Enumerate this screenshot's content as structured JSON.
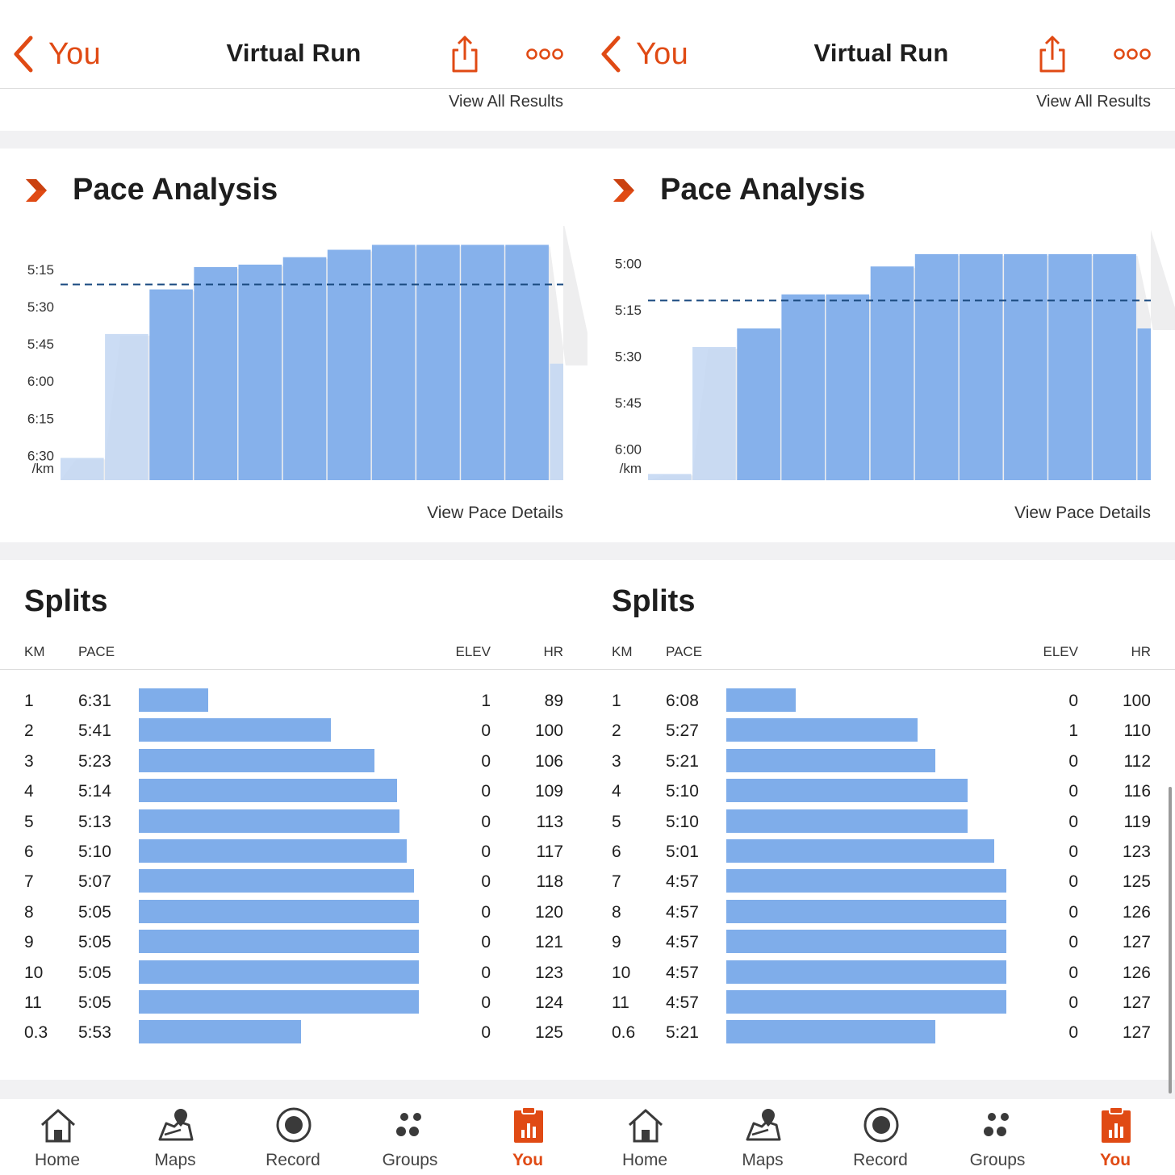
{
  "colors": {
    "accent": "#e04a14",
    "bar": "#7fadea",
    "bar_light": "#c2d6f2",
    "elevation_fill": "#eeeeef",
    "avg_line": "#1a4a80"
  },
  "panels": [
    {
      "header": {
        "back_label": "You",
        "title": "Virtual Run",
        "back_icon": "chevron-left-icon",
        "share_icon": "share-icon",
        "more_icon": "more-dots-icon"
      },
      "view_all_results": "View All Results",
      "pace_analysis": {
        "title": "Pace Analysis",
        "icon": "strava-chevron-icon",
        "view_details": "View Pace Details"
      },
      "splits": {
        "title": "Splits",
        "headers": {
          "km": "KM",
          "pace": "PACE",
          "elev": "ELEV",
          "hr": "HR"
        },
        "rows": [
          {
            "km": "1",
            "pace": "6:31",
            "elev": "1",
            "hr": "89"
          },
          {
            "km": "2",
            "pace": "5:41",
            "elev": "0",
            "hr": "100"
          },
          {
            "km": "3",
            "pace": "5:23",
            "elev": "0",
            "hr": "106"
          },
          {
            "km": "4",
            "pace": "5:14",
            "elev": "0",
            "hr": "109"
          },
          {
            "km": "5",
            "pace": "5:13",
            "elev": "0",
            "hr": "113"
          },
          {
            "km": "6",
            "pace": "5:10",
            "elev": "0",
            "hr": "117"
          },
          {
            "km": "7",
            "pace": "5:07",
            "elev": "0",
            "hr": "118"
          },
          {
            "km": "8",
            "pace": "5:05",
            "elev": "0",
            "hr": "120"
          },
          {
            "km": "9",
            "pace": "5:05",
            "elev": "0",
            "hr": "121"
          },
          {
            "km": "10",
            "pace": "5:05",
            "elev": "0",
            "hr": "123"
          },
          {
            "km": "11",
            "pace": "5:05",
            "elev": "0",
            "hr": "124"
          },
          {
            "km": "0.3",
            "pace": "5:53",
            "elev": "0",
            "hr": "125"
          }
        ]
      },
      "tabbar": [
        {
          "label": "Home",
          "icon": "home-icon",
          "active": false
        },
        {
          "label": "Maps",
          "icon": "maps-icon",
          "active": false
        },
        {
          "label": "Record",
          "icon": "record-icon",
          "active": false
        },
        {
          "label": "Groups",
          "icon": "groups-icon",
          "active": false
        },
        {
          "label": "You",
          "icon": "you-icon",
          "active": true
        }
      ]
    },
    {
      "header": {
        "back_label": "You",
        "title": "Virtual Run",
        "back_icon": "chevron-left-icon",
        "share_icon": "share-icon",
        "more_icon": "more-dots-icon"
      },
      "view_all_results": "View All Results",
      "pace_analysis": {
        "title": "Pace Analysis",
        "icon": "strava-chevron-icon",
        "view_details": "View Pace Details"
      },
      "splits": {
        "title": "Splits",
        "headers": {
          "km": "KM",
          "pace": "PACE",
          "elev": "ELEV",
          "hr": "HR"
        },
        "rows": [
          {
            "km": "1",
            "pace": "6:08",
            "elev": "0",
            "hr": "100"
          },
          {
            "km": "2",
            "pace": "5:27",
            "elev": "1",
            "hr": "110"
          },
          {
            "km": "3",
            "pace": "5:21",
            "elev": "0",
            "hr": "112"
          },
          {
            "km": "4",
            "pace": "5:10",
            "elev": "0",
            "hr": "116"
          },
          {
            "km": "5",
            "pace": "5:10",
            "elev": "0",
            "hr": "119"
          },
          {
            "km": "6",
            "pace": "5:01",
            "elev": "0",
            "hr": "123"
          },
          {
            "km": "7",
            "pace": "4:57",
            "elev": "0",
            "hr": "125"
          },
          {
            "km": "8",
            "pace": "4:57",
            "elev": "0",
            "hr": "126"
          },
          {
            "km": "9",
            "pace": "4:57",
            "elev": "0",
            "hr": "127"
          },
          {
            "km": "10",
            "pace": "4:57",
            "elev": "0",
            "hr": "126"
          },
          {
            "km": "11",
            "pace": "4:57",
            "elev": "0",
            "hr": "127"
          },
          {
            "km": "0.6",
            "pace": "5:21",
            "elev": "0",
            "hr": "127"
          }
        ]
      },
      "tabbar": [
        {
          "label": "Home",
          "icon": "home-icon",
          "active": false
        },
        {
          "label": "Maps",
          "icon": "maps-icon",
          "active": false
        },
        {
          "label": "Record",
          "icon": "record-icon",
          "active": false
        },
        {
          "label": "Groups",
          "icon": "groups-icon",
          "active": false
        },
        {
          "label": "You",
          "icon": "you-icon",
          "active": true
        }
      ]
    }
  ],
  "chart_data": [
    {
      "type": "bar",
      "title": "Pace Analysis",
      "ylabel": "/km",
      "y_ticks": [
        "5:15",
        "5:30",
        "5:45",
        "6:00",
        "6:15",
        "6:30"
      ],
      "y_tick_seconds": [
        315,
        330,
        345,
        360,
        375,
        390
      ],
      "ylim_seconds_per_km": [
        300,
        400
      ],
      "y_inverted": true,
      "average_pace_seconds": 321,
      "categories": [
        "1",
        "2",
        "3",
        "4",
        "5",
        "6",
        "7",
        "8",
        "9",
        "10",
        "11",
        "0.3"
      ],
      "series": [
        {
          "values_seconds_per_km": [
            391,
            341,
            323,
            314,
            313,
            310,
            307,
            305,
            305,
            305,
            305,
            353
          ]
        }
      ]
    },
    {
      "type": "bar",
      "title": "Pace Analysis",
      "ylabel": "/km",
      "y_ticks": [
        "5:00",
        "5:15",
        "5:30",
        "5:45",
        "6:00"
      ],
      "y_tick_seconds": [
        300,
        315,
        330,
        345,
        360
      ],
      "ylim_seconds_per_km": [
        290,
        370
      ],
      "y_inverted": true,
      "average_pace_seconds": 312,
      "categories": [
        "1",
        "2",
        "3",
        "4",
        "5",
        "6",
        "7",
        "8",
        "9",
        "10",
        "11",
        "0.6"
      ],
      "series": [
        {
          "values_seconds_per_km": [
            368,
            327,
            321,
            310,
            310,
            301,
            297,
            297,
            297,
            297,
            297,
            321
          ]
        }
      ]
    }
  ]
}
